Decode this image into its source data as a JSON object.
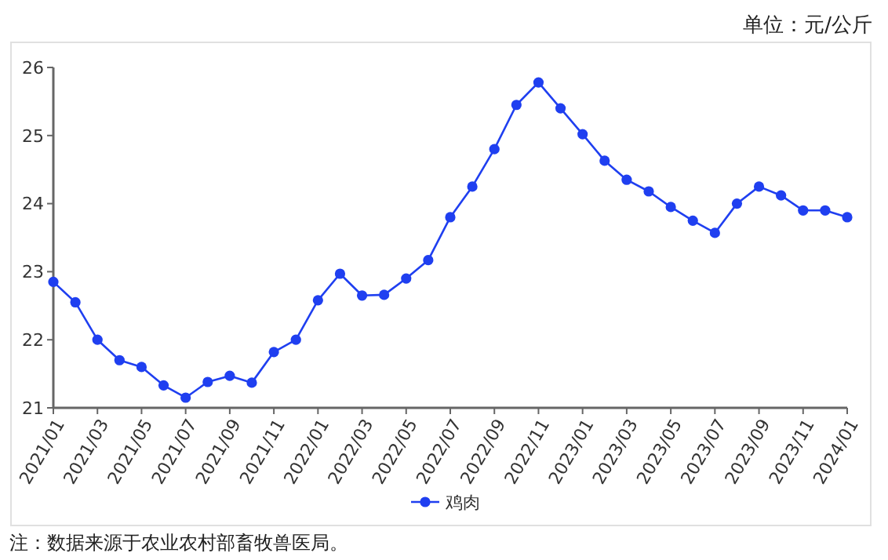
{
  "chart_data": {
    "type": "line",
    "categories": [
      "2021/01",
      null,
      "2021/03",
      null,
      "2021/05",
      null,
      "2021/07",
      null,
      "2021/09",
      null,
      "2021/11",
      null,
      "2022/01",
      null,
      "2022/03",
      null,
      "2022/05",
      null,
      "2022/07",
      null,
      "2022/09",
      null,
      "2022/11",
      null,
      "2023/01",
      null,
      "2023/03",
      null,
      "2023/05",
      null,
      "2023/07",
      null,
      "2023/09",
      null,
      "2023/11",
      null,
      "2024/01"
    ],
    "series": [
      {
        "name": "鸡肉",
        "color": "#1f3ff0",
        "values": [
          22.85,
          22.55,
          22.0,
          21.7,
          21.6,
          21.33,
          21.15,
          21.38,
          21.47,
          21.37,
          21.82,
          22.0,
          22.58,
          22.97,
          22.65,
          22.66,
          22.9,
          23.17,
          23.8,
          24.25,
          24.8,
          25.45,
          25.78,
          25.4,
          25.02,
          24.63,
          24.35,
          24.18,
          23.95,
          23.75,
          23.57,
          24.0,
          24.25,
          24.12,
          23.9,
          23.9,
          23.8
        ]
      }
    ],
    "ylim": [
      21,
      26
    ],
    "yticks": [
      21,
      22,
      23,
      24,
      25,
      26
    ],
    "grid": false,
    "legend": "bottom",
    "marker": "circle",
    "line_style": "solid",
    "annotations": [
      "单位：元/公斤",
      "注：数据来源于农业农村部畜牧兽医局。"
    ]
  }
}
